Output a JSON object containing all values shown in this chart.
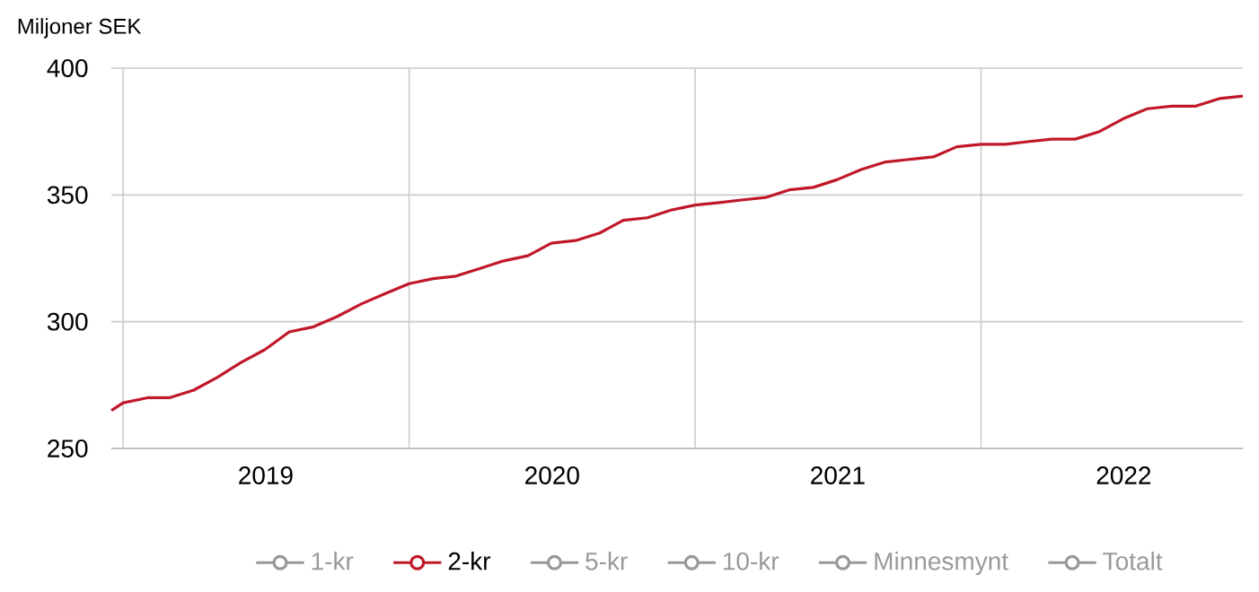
{
  "chart_data": {
    "type": "line",
    "ylabel": "Miljoner SEK",
    "x": [
      "2018-12-17",
      "2019-01-01",
      "2019-02-01",
      "2019-03-01",
      "2019-04-01",
      "2019-05-01",
      "2019-06-01",
      "2019-07-01",
      "2019-08-01",
      "2019-09-01",
      "2019-10-01",
      "2019-11-01",
      "2019-12-01",
      "2020-01-01",
      "2020-02-01",
      "2020-03-01",
      "2020-04-01",
      "2020-05-01",
      "2020-06-01",
      "2020-07-01",
      "2020-08-01",
      "2020-09-01",
      "2020-10-01",
      "2020-11-01",
      "2020-12-01",
      "2021-01-01",
      "2021-02-01",
      "2021-03-01",
      "2021-04-01",
      "2021-05-01",
      "2021-06-01",
      "2021-07-01",
      "2021-08-01",
      "2021-09-01",
      "2021-10-01",
      "2021-11-01",
      "2021-12-01",
      "2022-01-01",
      "2022-02-01",
      "2022-03-01",
      "2022-04-01",
      "2022-05-01",
      "2022-06-01",
      "2022-07-01",
      "2022-08-01",
      "2022-09-01",
      "2022-10-01",
      "2022-11-01",
      "2022-12-01"
    ],
    "series": [
      {
        "name": "1-kr",
        "color": "#999999",
        "values": [
          null,
          null,
          null,
          null,
          null,
          null,
          null,
          null,
          null,
          null,
          null,
          null,
          null,
          null,
          null,
          null,
          null,
          null,
          null,
          null,
          null,
          null,
          null,
          null,
          null,
          null,
          null,
          null,
          null,
          null,
          null,
          null,
          null,
          null,
          null,
          null,
          null,
          null,
          null,
          null,
          null,
          null,
          null,
          null,
          null,
          null,
          null,
          null,
          null
        ]
      },
      {
        "name": "2-kr",
        "color": "#c0182a",
        "values": [
          265,
          268,
          270,
          270,
          273,
          278,
          284,
          289,
          296,
          298,
          302,
          307,
          311,
          315,
          317,
          318,
          321,
          324,
          326,
          331,
          332,
          335,
          340,
          341,
          344,
          346,
          347,
          348,
          349,
          352,
          353,
          356,
          360,
          363,
          364,
          365,
          369,
          370,
          370,
          371,
          372,
          372,
          375,
          380,
          384,
          385,
          385,
          388,
          389
        ]
      },
      {
        "name": "5-kr",
        "color": "#999999",
        "values": [
          null,
          null,
          null,
          null,
          null,
          null,
          null,
          null,
          null,
          null,
          null,
          null,
          null,
          null,
          null,
          null,
          null,
          null,
          null,
          null,
          null,
          null,
          null,
          null,
          null,
          null,
          null,
          null,
          null,
          null,
          null,
          null,
          null,
          null,
          null,
          null,
          null,
          null,
          null,
          null,
          null,
          null,
          null,
          null,
          null,
          null,
          null,
          null,
          null
        ]
      },
      {
        "name": "10-kr",
        "color": "#999999",
        "values": [
          null,
          null,
          null,
          null,
          null,
          null,
          null,
          null,
          null,
          null,
          null,
          null,
          null,
          null,
          null,
          null,
          null,
          null,
          null,
          null,
          null,
          null,
          null,
          null,
          null,
          null,
          null,
          null,
          null,
          null,
          null,
          null,
          null,
          null,
          null,
          null,
          null,
          null,
          null,
          null,
          null,
          null,
          null,
          null,
          null,
          null,
          null,
          null,
          null
        ]
      },
      {
        "name": "Minnesmynt",
        "color": "#999999",
        "values": [
          null,
          null,
          null,
          null,
          null,
          null,
          null,
          null,
          null,
          null,
          null,
          null,
          null,
          null,
          null,
          null,
          null,
          null,
          null,
          null,
          null,
          null,
          null,
          null,
          null,
          null,
          null,
          null,
          null,
          null,
          null,
          null,
          null,
          null,
          null,
          null,
          null,
          null,
          null,
          null,
          null,
          null,
          null,
          null,
          null,
          null,
          null,
          null,
          null
        ]
      },
      {
        "name": "Totalt",
        "color": "#999999",
        "values": [
          null,
          null,
          null,
          null,
          null,
          null,
          null,
          null,
          null,
          null,
          null,
          null,
          null,
          null,
          null,
          null,
          null,
          null,
          null,
          null,
          null,
          null,
          null,
          null,
          null,
          null,
          null,
          null,
          null,
          null,
          null,
          null,
          null,
          null,
          null,
          null,
          null,
          null,
          null,
          null,
          null,
          null,
          null,
          null,
          null,
          null,
          null,
          null,
          null
        ]
      }
    ],
    "xlim": [
      "2018-12-17",
      "2022-12-01"
    ],
    "xticks": [
      {
        "value": "2019-01-01",
        "label": null
      },
      {
        "value": "2019-07-02",
        "label": "2019"
      },
      {
        "value": "2020-01-01",
        "label": null
      },
      {
        "value": "2020-07-02",
        "label": "2020"
      },
      {
        "value": "2021-01-01",
        "label": null
      },
      {
        "value": "2021-07-02",
        "label": "2021"
      },
      {
        "value": "2022-01-01",
        "label": null
      },
      {
        "value": "2022-07-02",
        "label": "2022"
      }
    ],
    "ylim": [
      250,
      400
    ],
    "yticks": [
      250,
      300,
      350,
      400
    ],
    "grid": true,
    "legend": "bottom",
    "line_style": "solid"
  }
}
